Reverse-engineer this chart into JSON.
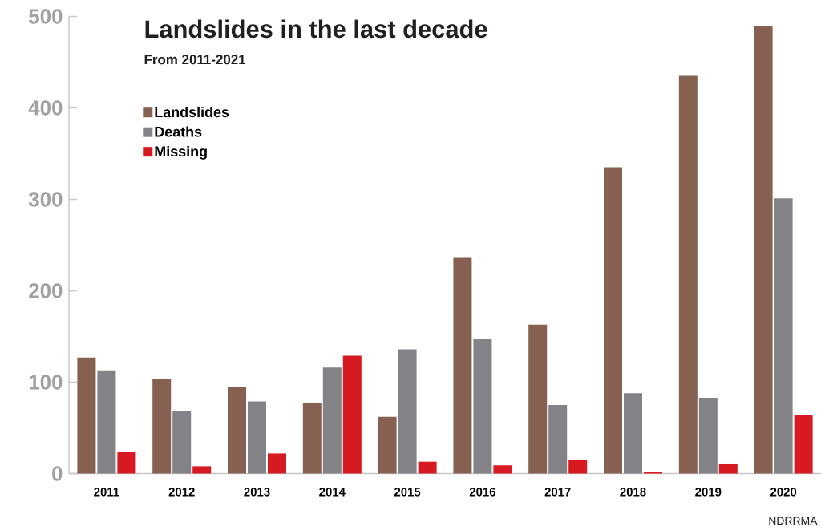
{
  "chart_data": {
    "type": "bar",
    "title": "Landslides in the last decade",
    "subtitle": "From 2011-2021",
    "categories": [
      "2011",
      "2012",
      "2013",
      "2014",
      "2015",
      "2016",
      "2017",
      "2018",
      "2019",
      "2020"
    ],
    "series": [
      {
        "name": "Landslides",
        "color": "#866051",
        "values": [
          127,
          104,
          95,
          77,
          62,
          236,
          163,
          335,
          435,
          489
        ]
      },
      {
        "name": "Deaths",
        "color": "#838387",
        "values": [
          113,
          68,
          79,
          116,
          136,
          147,
          75,
          88,
          83,
          301
        ]
      },
      {
        "name": "Missing",
        "color": "#d71a21",
        "values": [
          24,
          8,
          22,
          129,
          13,
          9,
          15,
          2,
          11,
          64
        ]
      }
    ],
    "ylim": [
      0,
      500
    ],
    "yticks": [
      0,
      100,
      200,
      300,
      400,
      500
    ],
    "legend": "top left",
    "annotations": [
      "NDRRMA"
    ]
  }
}
